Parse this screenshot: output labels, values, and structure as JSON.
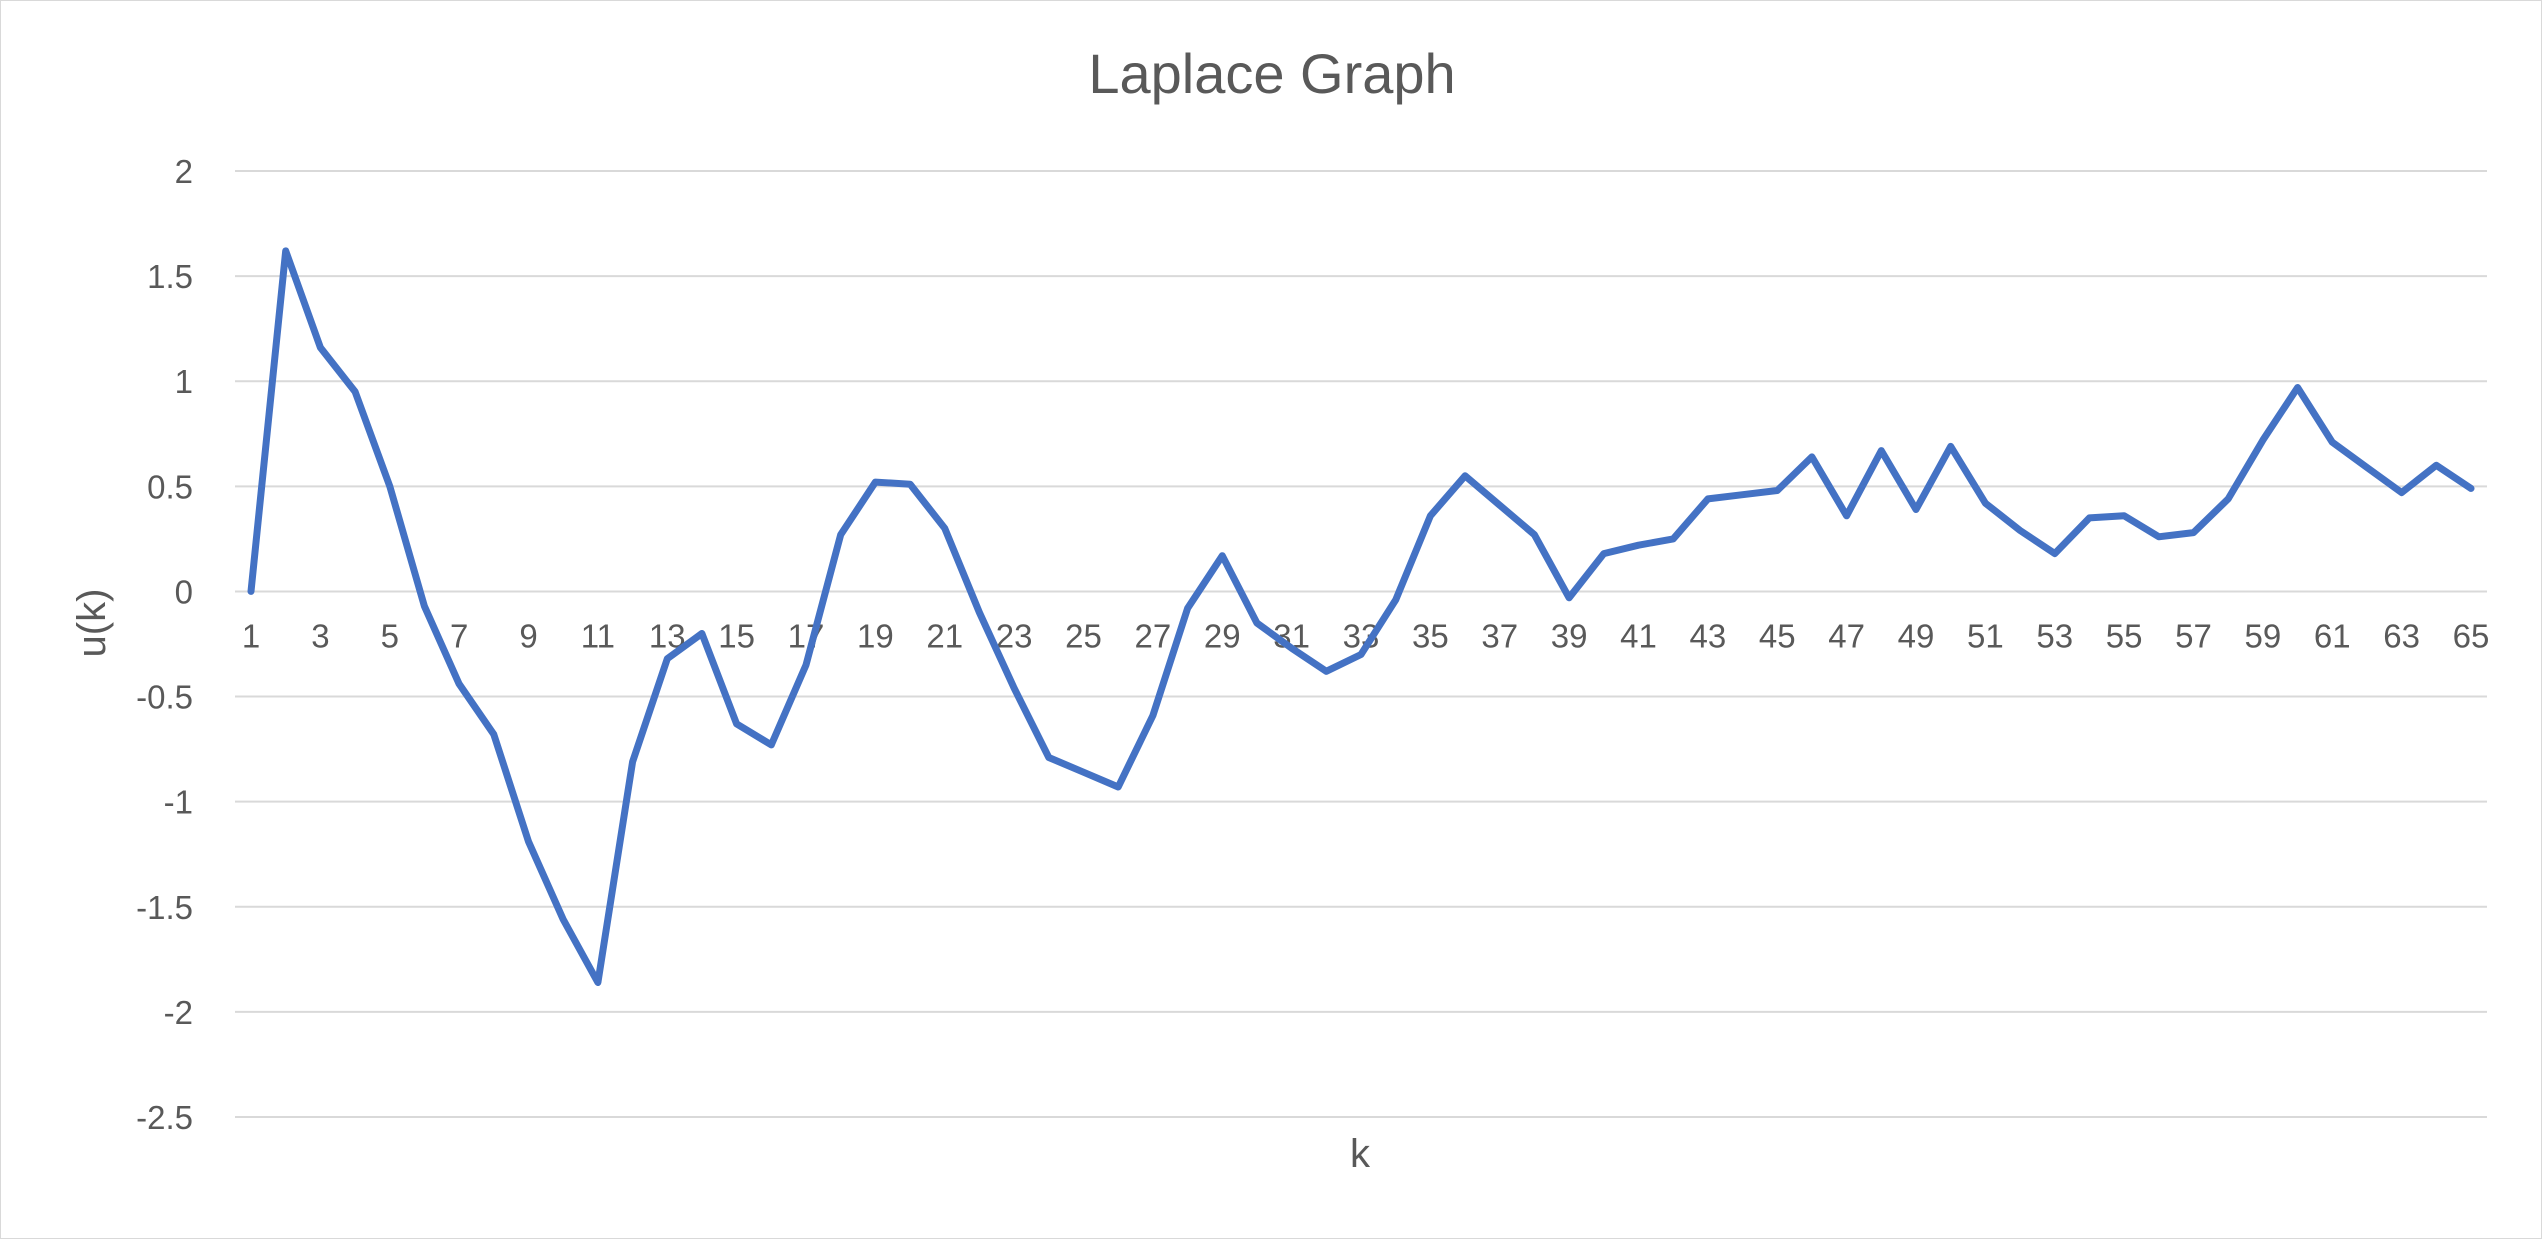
{
  "chart_data": {
    "type": "line",
    "title": "Laplace Graph",
    "xlabel": "k",
    "ylabel": "u(k)",
    "ylim": [
      -2.5,
      2
    ],
    "yticks": [
      2,
      1.5,
      1,
      0.5,
      0,
      -0.5,
      -1,
      -1.5,
      -2,
      -2.5
    ],
    "y_tick_labels": [
      "2",
      "1.5",
      "1",
      "0.5",
      "0",
      "-0.5",
      "-1",
      "-1.5",
      "-2",
      "-2.5"
    ],
    "x_tick_labels": [
      "1",
      "3",
      "5",
      "7",
      "9",
      "11",
      "13",
      "15",
      "17",
      "19",
      "21",
      "23",
      "25",
      "27",
      "29",
      "31",
      "33",
      "35",
      "37",
      "39",
      "41",
      "43",
      "45",
      "47",
      "49",
      "51",
      "53",
      "55",
      "57",
      "59",
      "61",
      "63",
      "65"
    ],
    "grid": true,
    "legend": "none",
    "line_color": "#4472c4",
    "x": [
      1,
      2,
      3,
      4,
      5,
      6,
      7,
      8,
      9,
      10,
      11,
      12,
      13,
      14,
      15,
      16,
      17,
      18,
      19,
      20,
      21,
      22,
      23,
      24,
      25,
      26,
      27,
      28,
      29,
      30,
      31,
      32,
      33,
      34,
      35,
      36,
      37,
      38,
      39,
      40,
      41,
      42,
      43,
      44,
      45,
      46,
      47,
      48,
      49,
      50,
      51,
      52,
      53,
      54,
      55,
      56,
      57,
      58,
      59,
      60,
      61,
      62,
      63,
      64,
      65
    ],
    "series": [
      {
        "values": [
          0,
          1.62,
          1.16,
          0.95,
          0.5,
          -0.07,
          -0.44,
          -0.68,
          -1.19,
          -1.56,
          -1.86,
          -0.81,
          -0.32,
          -0.2,
          -0.63,
          -0.73,
          -0.35,
          0.27,
          0.52,
          0.51,
          0.3,
          -0.1,
          -0.46,
          -0.79,
          -0.86,
          -0.93,
          -0.59,
          -0.08,
          0.17,
          -0.15,
          -0.27,
          -0.38,
          -0.3,
          -0.04,
          0.36,
          0.55,
          0.41,
          0.27,
          -0.03,
          0.18,
          0.22,
          0.25,
          0.44,
          0.46,
          0.48,
          0.64,
          0.36,
          0.67,
          0.39,
          0.69,
          0.42,
          0.29,
          0.18,
          0.35,
          0.36,
          0.26,
          0.28,
          0.44,
          0.72,
          0.97,
          0.71,
          0.59,
          0.47,
          0.6,
          0.49
        ]
      }
    ]
  }
}
